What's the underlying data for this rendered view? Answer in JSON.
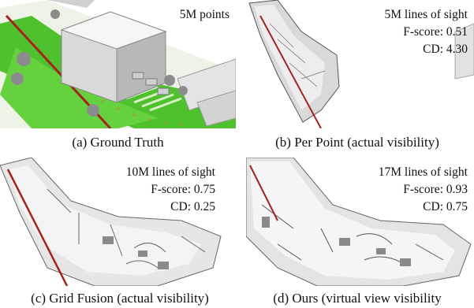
{
  "figure": {
    "panels": [
      {
        "id": "a",
        "caption": "(a) Ground Truth",
        "overlay": [
          "5M points"
        ]
      },
      {
        "id": "b",
        "caption": "(b) Per Point (actual visibility)",
        "overlay": [
          "5M lines of sight",
          "F-score: 0.51",
          "CD: 4.30"
        ]
      },
      {
        "id": "c",
        "caption": "(c) Grid Fusion (actual visibility)",
        "overlay": [
          "10M lines of sight",
          "F-score: 0.75",
          "CD: 0.25"
        ]
      },
      {
        "id": "d",
        "caption": "(d) Ours (virtual view visibility",
        "overlay": [
          "17M lines of sight",
          "F-score: 0.93",
          "CD: 0.75"
        ]
      }
    ]
  }
}
